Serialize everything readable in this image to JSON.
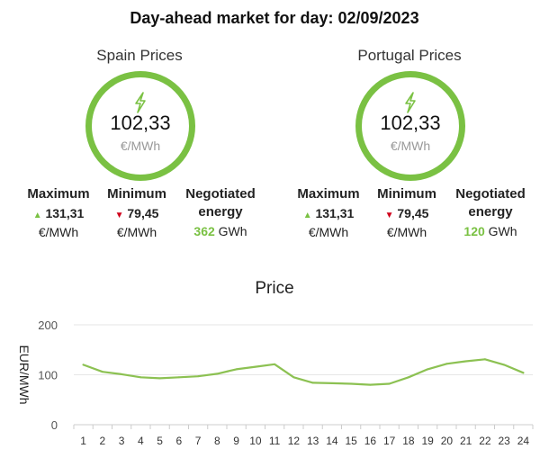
{
  "header": {
    "title": "Day-ahead market for day: 02/09/2023"
  },
  "markets": {
    "spain": {
      "name": "Spain Prices",
      "average": "102,33",
      "unit": "€/MWh",
      "max_label": "Maximum",
      "max_value": "131,31",
      "min_label": "Minimum",
      "min_value": "79,45",
      "neg_label_1": "Negotiated",
      "neg_label_2": "energy",
      "neg_value": "362",
      "neg_unit": "GWh"
    },
    "portugal": {
      "name": "Portugal Prices",
      "average": "102,33",
      "unit": "€/MWh",
      "max_label": "Maximum",
      "max_value": "131,31",
      "min_label": "Minimum",
      "min_value": "79,45",
      "neg_label_1": "Negotiated",
      "neg_label_2": "energy",
      "neg_value": "120",
      "neg_unit": "GWh"
    }
  },
  "icons": {
    "average": "lightning-bolt-icon",
    "max": "triangle-up-icon",
    "min": "triangle-down-icon"
  },
  "colors": {
    "accent": "#7ac143",
    "down": "#d0021b",
    "line": "#8cc152",
    "grid": "#e6e6e6"
  },
  "chart_data": {
    "type": "line",
    "title": "Price",
    "xlabel": "",
    "ylabel": "EUR/MWh",
    "x": [
      1,
      2,
      3,
      4,
      5,
      6,
      7,
      8,
      9,
      10,
      11,
      12,
      13,
      14,
      15,
      16,
      17,
      18,
      19,
      20,
      21,
      22,
      23,
      24
    ],
    "series": [
      {
        "values": [
          120,
          106,
          101,
          95,
          93,
          95,
          97,
          102,
          111,
          116,
          121,
          95,
          84,
          83,
          82,
          80,
          82,
          95,
          111,
          122,
          127,
          131,
          120,
          104
        ]
      }
    ],
    "ylim": [
      0,
      200
    ],
    "yticks": [
      0,
      100,
      200
    ],
    "grid": true
  }
}
